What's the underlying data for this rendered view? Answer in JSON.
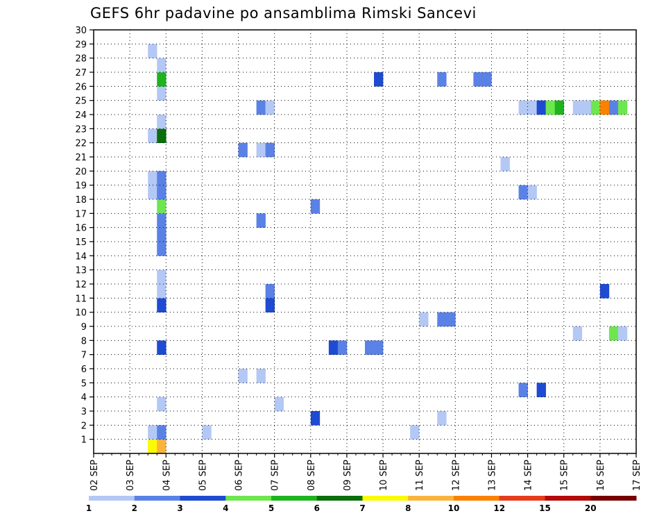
{
  "chart_data": {
    "type": "heatmap",
    "title": "GEFS 6hr padavine po ansamblima Rimski Sancevi",
    "xlabel": "",
    "ylabel": "",
    "x_tick_labels": [
      "02 SEP",
      "03 SEP",
      "04 SEP",
      "05 SEP",
      "06 SEP",
      "07 SEP",
      "08 SEP",
      "09 SEP",
      "10 SEP",
      "11 SEP",
      "12 SEP",
      "13 SEP",
      "14 SEP",
      "15 SEP",
      "16 SEP",
      "17 SEP"
    ],
    "y_tick_labels": [
      "1",
      "2",
      "3",
      "4",
      "5",
      "6",
      "7",
      "8",
      "9",
      "10",
      "11",
      "12",
      "13",
      "14",
      "15",
      "16",
      "17",
      "18",
      "19",
      "20",
      "21",
      "22",
      "23",
      "24",
      "25",
      "26",
      "27",
      "28",
      "29",
      "30"
    ],
    "x_unit": "6-hour step since 02 SEP 00Z",
    "xlim": [
      0,
      60
    ],
    "ylim": [
      0,
      30
    ],
    "grid": true,
    "colorbar": {
      "labels": [
        "1",
        "2",
        "3",
        "4",
        "5",
        "6",
        "7",
        "8",
        "10",
        "12",
        "15",
        "20"
      ],
      "colors": [
        "#b4c8f5",
        "#5a82e6",
        "#1e4bd2",
        "#6ee650",
        "#1eb41e",
        "#0a6e0a",
        "#fafa00",
        "#fab43c",
        "#fa8200",
        "#e63c1e",
        "#b40a0a",
        "#780000"
      ]
    },
    "cells": [
      {
        "step": 6,
        "member": 1,
        "level": 7
      },
      {
        "step": 7,
        "member": 1,
        "level": 8
      },
      {
        "step": 6,
        "member": 2,
        "level": 1
      },
      {
        "step": 7,
        "member": 2,
        "level": 2
      },
      {
        "step": 7,
        "member": 4,
        "level": 1
      },
      {
        "step": 7,
        "member": 8,
        "level": 3
      },
      {
        "step": 7,
        "member": 11,
        "level": 3
      },
      {
        "step": 7,
        "member": 12,
        "level": 1
      },
      {
        "step": 7,
        "member": 13,
        "level": 1
      },
      {
        "step": 7,
        "member": 15,
        "level": 2
      },
      {
        "step": 7,
        "member": 16,
        "level": 2
      },
      {
        "step": 7,
        "member": 17,
        "level": 2
      },
      {
        "step": 7,
        "member": 18,
        "level": 4
      },
      {
        "step": 6,
        "member": 19,
        "level": 1
      },
      {
        "step": 7,
        "member": 19,
        "level": 2
      },
      {
        "step": 6,
        "member": 20,
        "level": 1
      },
      {
        "step": 7,
        "member": 20,
        "level": 2
      },
      {
        "step": 6,
        "member": 23,
        "level": 1
      },
      {
        "step": 7,
        "member": 23,
        "level": 6
      },
      {
        "step": 7,
        "member": 24,
        "level": 1
      },
      {
        "step": 7,
        "member": 26,
        "level": 1
      },
      {
        "step": 7,
        "member": 27,
        "level": 5
      },
      {
        "step": 7,
        "member": 28,
        "level": 1
      },
      {
        "step": 6,
        "member": 29,
        "level": 1
      },
      {
        "step": 12,
        "member": 2,
        "level": 1
      },
      {
        "step": 16,
        "member": 6,
        "level": 1
      },
      {
        "step": 16,
        "member": 22,
        "level": 2
      },
      {
        "step": 18,
        "member": 6,
        "level": 1
      },
      {
        "step": 18,
        "member": 17,
        "level": 2
      },
      {
        "step": 18,
        "member": 22,
        "level": 1
      },
      {
        "step": 18,
        "member": 25,
        "level": 2
      },
      {
        "step": 19,
        "member": 11,
        "level": 3
      },
      {
        "step": 19,
        "member": 12,
        "level": 2
      },
      {
        "step": 19,
        "member": 22,
        "level": 2
      },
      {
        "step": 19,
        "member": 25,
        "level": 1
      },
      {
        "step": 20,
        "member": 4,
        "level": 1
      },
      {
        "step": 24,
        "member": 3,
        "level": 3
      },
      {
        "step": 24,
        "member": 18,
        "level": 2
      },
      {
        "step": 26,
        "member": 8,
        "level": 3
      },
      {
        "step": 27,
        "member": 8,
        "level": 2
      },
      {
        "step": 30,
        "member": 8,
        "level": 2
      },
      {
        "step": 31,
        "member": 8,
        "level": 2
      },
      {
        "step": 31,
        "member": 27,
        "level": 3
      },
      {
        "step": 35,
        "member": 2,
        "level": 1
      },
      {
        "step": 36,
        "member": 10,
        "level": 1
      },
      {
        "step": 38,
        "member": 3,
        "level": 1
      },
      {
        "step": 38,
        "member": 27,
        "level": 2
      },
      {
        "step": 38,
        "member": 10,
        "level": 2
      },
      {
        "step": 39,
        "member": 10,
        "level": 2
      },
      {
        "step": 42,
        "member": 27,
        "level": 2
      },
      {
        "step": 43,
        "member": 27,
        "level": 2
      },
      {
        "step": 45,
        "member": 21,
        "level": 1
      },
      {
        "step": 47,
        "member": 5,
        "level": 2
      },
      {
        "step": 47,
        "member": 19,
        "level": 2
      },
      {
        "step": 48,
        "member": 19,
        "level": 1
      },
      {
        "step": 47,
        "member": 25,
        "level": 1
      },
      {
        "step": 48,
        "member": 25,
        "level": 1
      },
      {
        "step": 49,
        "member": 25,
        "level": 3
      },
      {
        "step": 49,
        "member": 5,
        "level": 3
      },
      {
        "step": 50,
        "member": 25,
        "level": 4
      },
      {
        "step": 51,
        "member": 25,
        "level": 5
      },
      {
        "step": 53,
        "member": 9,
        "level": 1
      },
      {
        "step": 53,
        "member": 25,
        "level": 1
      },
      {
        "step": 54,
        "member": 25,
        "level": 1
      },
      {
        "step": 55,
        "member": 25,
        "level": 4
      },
      {
        "step": 56,
        "member": 25,
        "level": 9
      },
      {
        "step": 56,
        "member": 12,
        "level": 3
      },
      {
        "step": 57,
        "member": 25,
        "level": 2
      },
      {
        "step": 57,
        "member": 9,
        "level": 4
      },
      {
        "step": 58,
        "member": 25,
        "level": 4
      },
      {
        "step": 58,
        "member": 9,
        "level": 1
      }
    ]
  }
}
